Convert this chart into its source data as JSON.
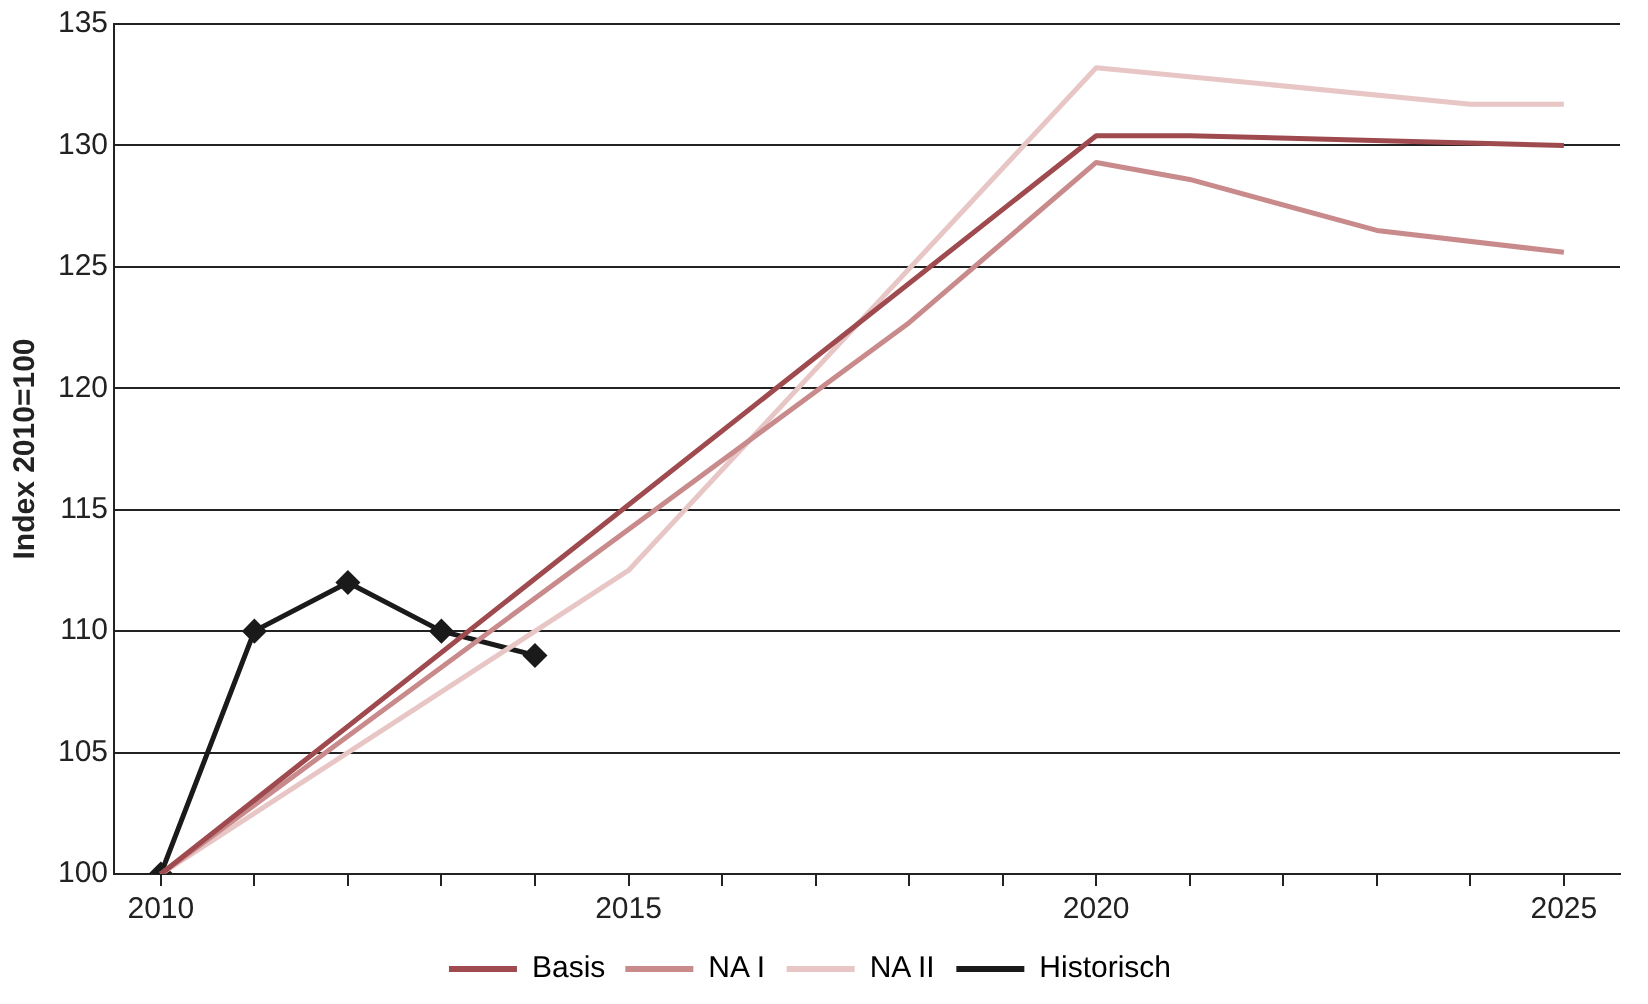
{
  "chart_data": {
    "type": "line",
    "ylabel": "Index 2010=100",
    "xlim": [
      2009.5,
      2025.6
    ],
    "ylim": [
      100,
      135
    ],
    "xticks": [
      2010,
      {
        "value": 2011,
        "label": null
      },
      {
        "value": 2012,
        "label": null
      },
      {
        "value": 2013,
        "label": null
      },
      {
        "value": 2014,
        "label": null
      },
      2015,
      {
        "value": 2016,
        "label": null
      },
      {
        "value": 2017,
        "label": null
      },
      {
        "value": 2018,
        "label": null
      },
      {
        "value": 2019,
        "label": null
      },
      2020,
      {
        "value": 2021,
        "label": null
      },
      {
        "value": 2022,
        "label": null
      },
      {
        "value": 2023,
        "label": null
      },
      {
        "value": 2024,
        "label": null
      },
      2025
    ],
    "yticks": [
      100,
      105,
      110,
      115,
      120,
      125,
      130,
      135
    ],
    "grid": "y",
    "legend": "bottom",
    "marker": "none",
    "line_style": "solid",
    "series": [
      {
        "name": "Basis",
        "color": "#9e4a4f",
        "x": [
          2010,
          2020,
          2021,
          2025
        ],
        "values": [
          100,
          130.4,
          130.4,
          130.0
        ]
      },
      {
        "name": "NA I",
        "color": "#c98a8b",
        "x": [
          2010,
          2018,
          2020,
          2021,
          2023,
          2025
        ],
        "values": [
          100,
          122.7,
          129.3,
          128.6,
          126.5,
          125.6
        ]
      },
      {
        "name": "NA II",
        "color": "#e8c6c6",
        "x": [
          2010,
          2015,
          2020,
          2024,
          2025
        ],
        "values": [
          100,
          112.5,
          133.2,
          131.7,
          131.7
        ]
      },
      {
        "name": "Historisch",
        "color": "#1a1a1a",
        "marker": "diamond",
        "x": [
          2010,
          2011,
          2012,
          2013,
          2014
        ],
        "values": [
          100,
          110,
          112,
          110,
          109
        ]
      }
    ]
  }
}
